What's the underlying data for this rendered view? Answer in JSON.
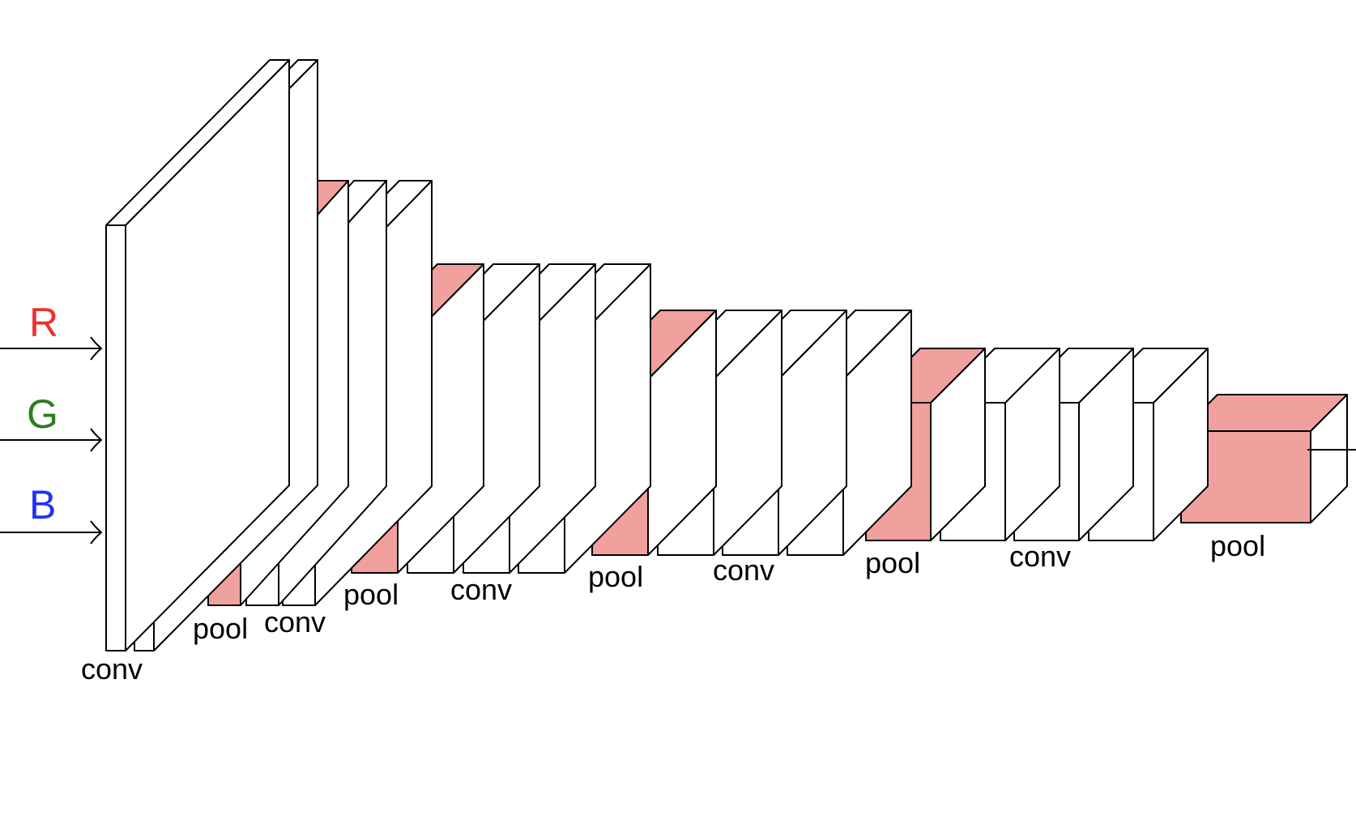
{
  "inputs": [
    {
      "label": "R",
      "color": "#e8342c"
    },
    {
      "label": "G",
      "color": "#2f7b22"
    },
    {
      "label": "B",
      "color": "#2231f2"
    }
  ],
  "colors": {
    "pool_fill": "#f0a09d",
    "conv_fill": "#ffffff",
    "stroke": "#000000",
    "text": "#000000"
  },
  "labels": {
    "stage1_conv": "conv",
    "stage2_pool": "pool",
    "stage2_conv": "conv",
    "stage3_pool": "pool",
    "stage3_conv": "conv",
    "stage4_pool": "pool",
    "stage4_conv": "conv",
    "stage5_pool": "pool",
    "stage5_conv": "conv",
    "stage6_pool": "pool"
  }
}
